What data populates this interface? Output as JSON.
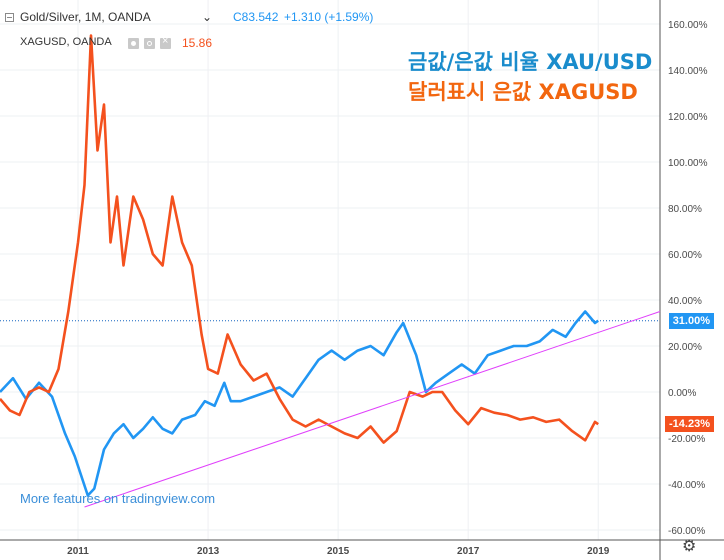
{
  "header": {
    "symbol_line": "Gold/Silver, 1M, OANDA",
    "close_value": "C83.542",
    "change_value": "+1.310 (+1.59%)",
    "indicator_name": "XAGUSD, OANDA",
    "indicator_value": "15.86"
  },
  "annotations": {
    "line1": "금값/은값 비율 XAU/USD",
    "line2": "달러표시 은값 XAGUSD"
  },
  "price_tags": {
    "ratio": "31.00%",
    "silver": "-14.23%"
  },
  "footer": {
    "link_text": "More features on tradingview.com"
  },
  "colors": {
    "ratio_line": "#2196F3",
    "silver_line": "#F4511E",
    "trend_line": "#E040FB",
    "dotted_level": "#1565C0",
    "annotation_blue": "#1a8ccc",
    "annotation_orange": "#f2660f"
  },
  "chart_data": {
    "type": "line",
    "title": "Gold/Silver, 1M, OANDA",
    "xlabel": "",
    "ylabel": "",
    "ylim": [
      -60,
      160
    ],
    "y_ticks": [
      160,
      140,
      120,
      100,
      80,
      60,
      40,
      20,
      0,
      -20,
      -40,
      -60
    ],
    "y_tick_labels": [
      "160.00%",
      "140.00%",
      "120.00%",
      "100.00%",
      "80.00%",
      "60.00%",
      "40.00%",
      "20.00%",
      "0.00%",
      "-20.00%",
      "-40.00%",
      "-60.00%"
    ],
    "x_ticks": [
      2011,
      2013,
      2015,
      2017,
      2019
    ],
    "x_tick_labels": [
      "2011",
      "2013",
      "2015",
      "2017",
      "2019"
    ],
    "xlim": [
      2009.8,
      2019.95
    ],
    "series": [
      {
        "name": "Gold/Silver (XAU/XAG ratio)",
        "color": "#2196F3",
        "x": [
          2009.8,
          2010.0,
          2010.2,
          2010.4,
          2010.6,
          2010.8,
          2010.95,
          2011.15,
          2011.25,
          2011.4,
          2011.55,
          2011.7,
          2011.85,
          2012.0,
          2012.15,
          2012.3,
          2012.45,
          2012.6,
          2012.8,
          2012.95,
          2013.1,
          2013.25,
          2013.35,
          2013.5,
          2013.7,
          2013.9,
          2014.1,
          2014.3,
          2014.5,
          2014.7,
          2014.9,
          2015.1,
          2015.3,
          2015.5,
          2015.7,
          2015.9,
          2016.0,
          2016.2,
          2016.35,
          2016.5,
          2016.7,
          2016.9,
          2017.1,
          2017.3,
          2017.5,
          2017.7,
          2017.9,
          2018.1,
          2018.3,
          2018.5,
          2018.65,
          2018.8,
          2018.95,
          2019.0
        ],
        "values": [
          0,
          6,
          -3,
          4,
          -2,
          -18,
          -28,
          -45,
          -42,
          -25,
          -18,
          -14,
          -20,
          -16,
          -11,
          -16,
          -18,
          -12,
          -10,
          -4,
          -6,
          4,
          -4,
          -4,
          -2,
          0,
          2,
          -2,
          6,
          14,
          18,
          14,
          18,
          20,
          16,
          26,
          30,
          16,
          0,
          4,
          8,
          12,
          8,
          16,
          18,
          20,
          20,
          22,
          27,
          24,
          30,
          35,
          30,
          31
        ]
      },
      {
        "name": "XAGUSD, OANDA",
        "color": "#F4511E",
        "x": [
          2009.8,
          2009.95,
          2010.1,
          2010.25,
          2010.4,
          2010.55,
          2010.7,
          2010.85,
          2011.0,
          2011.1,
          2011.2,
          2011.3,
          2011.4,
          2011.5,
          2011.6,
          2011.7,
          2011.85,
          2012.0,
          2012.15,
          2012.3,
          2012.45,
          2012.6,
          2012.75,
          2012.9,
          2013.0,
          2013.15,
          2013.3,
          2013.5,
          2013.7,
          2013.9,
          2014.1,
          2014.3,
          2014.5,
          2014.7,
          2014.9,
          2015.1,
          2015.3,
          2015.5,
          2015.7,
          2015.9,
          2016.1,
          2016.3,
          2016.45,
          2016.6,
          2016.8,
          2017.0,
          2017.2,
          2017.4,
          2017.6,
          2017.8,
          2018.0,
          2018.2,
          2018.4,
          2018.6,
          2018.8,
          2018.95,
          2019.0
        ],
        "values": [
          -3,
          -8,
          -10,
          0,
          2,
          0,
          10,
          35,
          65,
          90,
          155,
          105,
          125,
          65,
          85,
          55,
          85,
          75,
          60,
          55,
          85,
          65,
          55,
          25,
          10,
          8,
          25,
          12,
          5,
          8,
          -3,
          -12,
          -15,
          -12,
          -15,
          -18,
          -20,
          -15,
          -22,
          -17,
          0,
          -2,
          0,
          0,
          -8,
          -14,
          -7,
          -9,
          -10,
          -12,
          -11,
          -13,
          -12,
          -17,
          -21,
          -13,
          -14
        ]
      }
    ],
    "trend_line": {
      "x": [
        2011.1,
        2019.95
      ],
      "values": [
        -50,
        35
      ]
    },
    "price_level": 31
  }
}
